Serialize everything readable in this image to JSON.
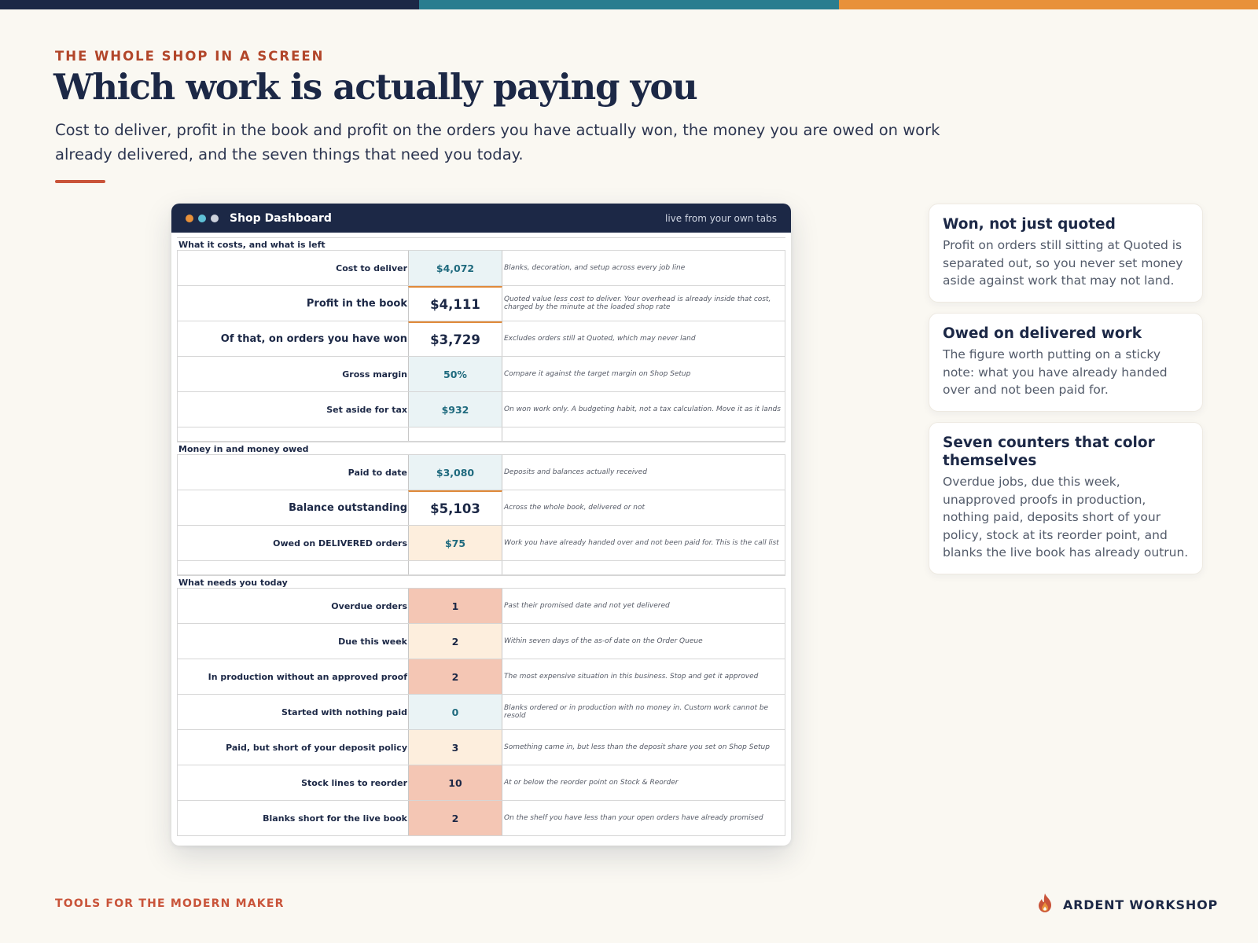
{
  "brand_colors": {
    "navy": "#1c2846",
    "teal": "#2a7d8f",
    "orange": "#e8913a",
    "rust": "#c9543a"
  },
  "eyebrow": "THE WHOLE SHOP IN A SCREEN",
  "title": "Which work is actually paying you",
  "subtitle": "Cost to deliver, profit in the book and profit on the orders you have actually won, the money you are owed on work already delivered, and the seven things that need you today.",
  "window": {
    "title": "Shop Dashboard",
    "right_text": "live from your own tabs",
    "traffic_lights": [
      "#e8913a",
      "#5fc0d6",
      "#cdd2dc"
    ]
  },
  "sections": {
    "costs": {
      "label": "What it costs, and what is left",
      "rows": [
        {
          "label": "Cost to deliver",
          "value": "$4,072",
          "note": "Blanks, decoration, and setup across every job line"
        },
        {
          "label": "Profit in the book",
          "value": "$4,111",
          "note": "Quoted value less cost to deliver. Your overhead is already inside that cost, charged by the minute at the loaded shop rate"
        },
        {
          "label": "Of that, on orders you have won",
          "value": "$3,729",
          "note": "Excludes orders still at Quoted, which may never land"
        },
        {
          "label": "Gross margin",
          "value": "50%",
          "note": "Compare it against the target margin on Shop Setup"
        },
        {
          "label": "Set aside for tax",
          "value": "$932",
          "note": "On won work only. A budgeting habit, not a tax calculation. Move it as it lands"
        }
      ]
    },
    "money": {
      "label": "Money in and money owed",
      "rows": [
        {
          "label": "Paid to date",
          "value": "$3,080",
          "note": "Deposits and balances actually received"
        },
        {
          "label": "Balance outstanding",
          "value": "$5,103",
          "note": "Across the whole book, delivered or not"
        },
        {
          "label": "Owed on DELIVERED orders",
          "value": "$75",
          "note": "Work you have already handed over and not been paid for. This is the call list"
        }
      ]
    },
    "today": {
      "label": "What needs you today",
      "rows": [
        {
          "label": "Overdue orders",
          "value": "1",
          "note": "Past their promised date and not yet delivered"
        },
        {
          "label": "Due this week",
          "value": "2",
          "note": "Within seven days of the as-of date on the Order Queue"
        },
        {
          "label": "In production without an approved proof",
          "value": "2",
          "note": "The most expensive situation in this business. Stop and get it approved"
        },
        {
          "label": "Started with nothing paid",
          "value": "0",
          "note": "Blanks ordered or in production with no money in. Custom work cannot be resold"
        },
        {
          "label": "Paid, but short of your deposit policy",
          "value": "3",
          "note": "Something came in, but less than the deposit share you set on Shop Setup"
        },
        {
          "label": "Stock lines to reorder",
          "value": "10",
          "note": "At or below the reorder point on Stock & Reorder"
        },
        {
          "label": "Blanks short for the live book",
          "value": "2",
          "note": "On the shelf you have less than your open orders have already promised"
        }
      ]
    }
  },
  "cards": [
    {
      "title": "Won, not just quoted",
      "body": "Profit on orders still sitting at Quoted is separated out, so you never set money aside against work that may not land."
    },
    {
      "title": "Owed on delivered work",
      "body": "The figure worth putting on a sticky note: what you have already handed over and not been paid for."
    },
    {
      "title": "Seven counters that color themselves",
      "body": "Overdue jobs, due this week, unapproved proofs in production, nothing paid, deposits short of your policy, stock at its reorder point, and blanks the live book has already outrun."
    }
  ],
  "footer": {
    "tagline": "TOOLS FOR THE MODERN MAKER",
    "brand": "ARDENT WORKSHOP",
    "logo_icon": "flame-icon"
  }
}
